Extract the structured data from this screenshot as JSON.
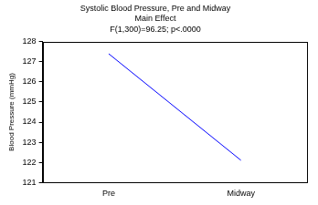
{
  "chart_data": {
    "type": "line",
    "title": [
      "Systolic Blood Pressure, Pre and Midway",
      "Main Effect",
      "F(1,300)=96.25; p<.0000"
    ],
    "y_label": "Blood Pressure (mmHg)",
    "categories": [
      "Pre",
      "Midway"
    ],
    "values": [
      127.4,
      122.1
    ],
    "color": "#0000ff",
    "marker": "none",
    "ylim": [
      121,
      128
    ],
    "yticks": [
      121,
      122,
      123,
      124,
      125,
      126,
      127,
      128
    ],
    "grid": false
  }
}
